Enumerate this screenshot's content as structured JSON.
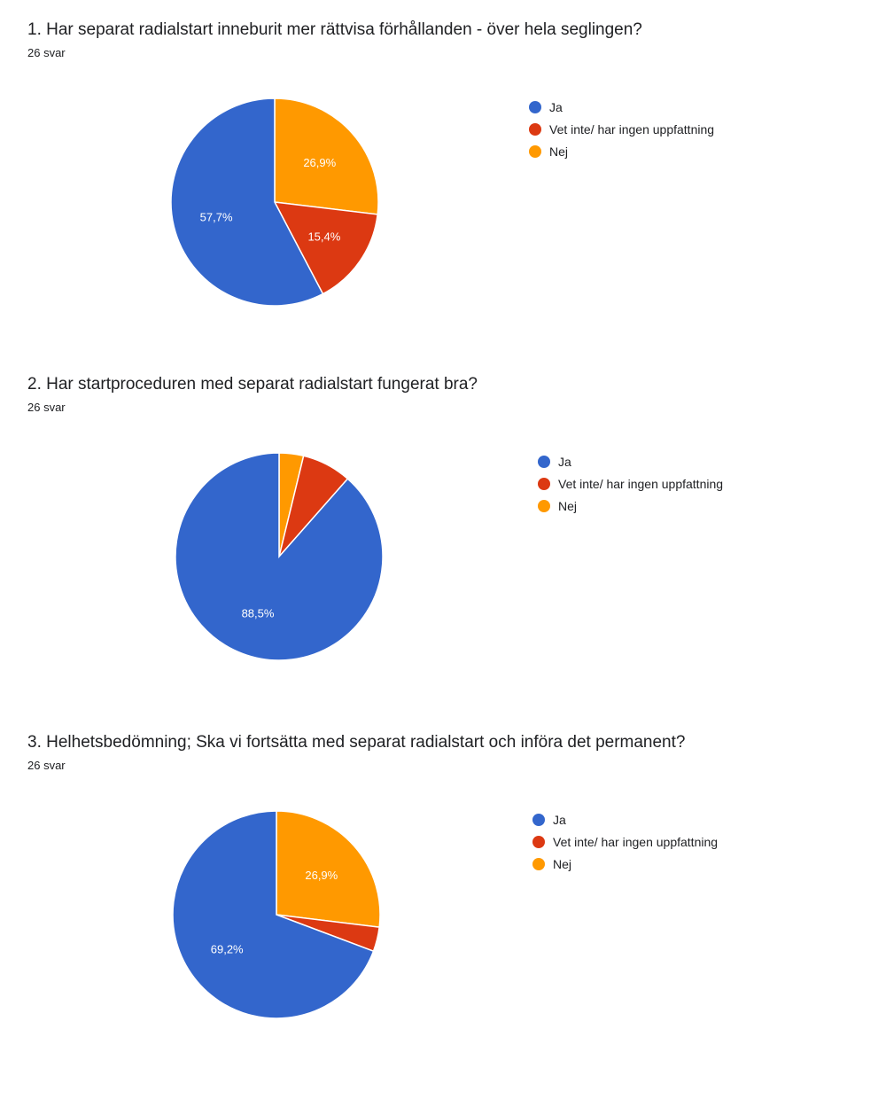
{
  "colors": {
    "ja": "#3366cc",
    "vet_inte": "#dc3912",
    "nej": "#ff9900"
  },
  "legend_labels": [
    "Ja",
    "Vet inte/ har ingen uppfattning",
    "Nej"
  ],
  "questions": [
    {
      "title": "1. Har separat radialstart inneburit mer rättvisa förhållanden - över hela seglingen?",
      "count": "26 svar"
    },
    {
      "title": "2. Har startproceduren med separat radialstart fungerat bra?",
      "count": "26 svar"
    },
    {
      "title": "3. Helhetsbedömning; Ska vi fortsätta med separat radialstart och införa det permanent?",
      "count": "26 svar"
    }
  ],
  "chart_data": [
    {
      "type": "pie",
      "categories": [
        "Ja",
        "Vet inte/ har ingen uppfattning",
        "Nej"
      ],
      "values": [
        57.7,
        15.4,
        26.9
      ],
      "labels": [
        "57,7%",
        "15,4%",
        "26,9%"
      ],
      "legend": "right"
    },
    {
      "type": "pie",
      "categories": [
        "Ja",
        "Vet inte/ har ingen uppfattning",
        "Nej"
      ],
      "values": [
        88.5,
        7.7,
        3.8
      ],
      "labels": [
        "88,5%",
        "",
        ""
      ],
      "legend": "right"
    },
    {
      "type": "pie",
      "categories": [
        "Ja",
        "Vet inte/ har ingen uppfattning",
        "Nej"
      ],
      "values": [
        69.2,
        3.8,
        26.9
      ],
      "labels": [
        "69,2%",
        "",
        "26,9%"
      ],
      "legend": "right"
    }
  ]
}
